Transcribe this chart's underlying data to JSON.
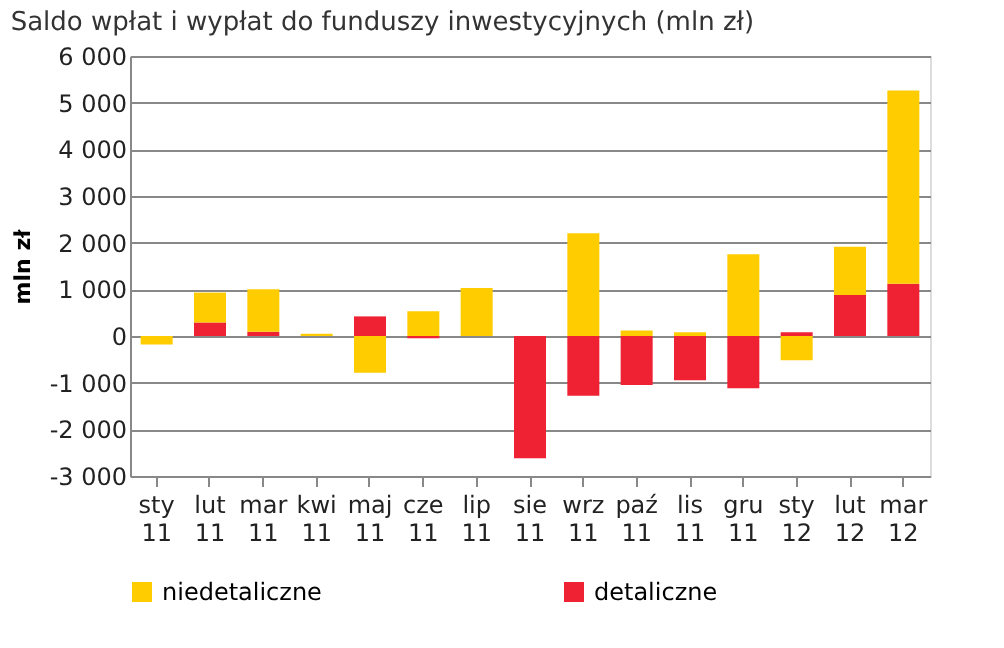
{
  "chart_data": {
    "type": "bar",
    "stacked": true,
    "title": "Saldo wpłat i wypłat do funduszy inwestycyjnych (mln zł)",
    "ylabel": "mln zł",
    "categories": [
      "sty 11",
      "lut 11",
      "mar 11",
      "kwi 11",
      "maj 11",
      "cze 11",
      "lip 11",
      "sie 11",
      "wrz 11",
      "paź 11",
      "lis 11",
      "gru 11",
      "sty 12",
      "lut 12",
      "mar 12"
    ],
    "series": [
      {
        "name": "detaliczne",
        "color": "#ee2233",
        "values": [
          0,
          290,
          90,
          0,
          420,
          -50,
          0,
          -2620,
          -1280,
          -1050,
          -950,
          -1120,
          80,
          880,
          1120
        ]
      },
      {
        "name": "niedetaliczne",
        "color": "#ffcc00",
        "values": [
          -180,
          640,
          910,
          50,
          -790,
          530,
          1030,
          0,
          2200,
          120,
          80,
          1750,
          -520,
          1030,
          4140
        ]
      }
    ],
    "ylim": [
      -3000,
      6000
    ],
    "yticks": [
      {
        "value": -3000,
        "label": "-3 000"
      },
      {
        "value": -2000,
        "label": "-2 000"
      },
      {
        "value": -1000,
        "label": "-1 000"
      },
      0,
      {
        "value": 1000,
        "label": "1 000"
      },
      {
        "value": 2000,
        "label": "2 000"
      },
      {
        "value": 3000,
        "label": "3 000"
      },
      {
        "value": 4000,
        "label": "4 000"
      },
      {
        "value": 5000,
        "label": "5 000"
      },
      {
        "value": 6000,
        "label": "6 000"
      }
    ],
    "grid": "y",
    "legend": "bottom"
  }
}
